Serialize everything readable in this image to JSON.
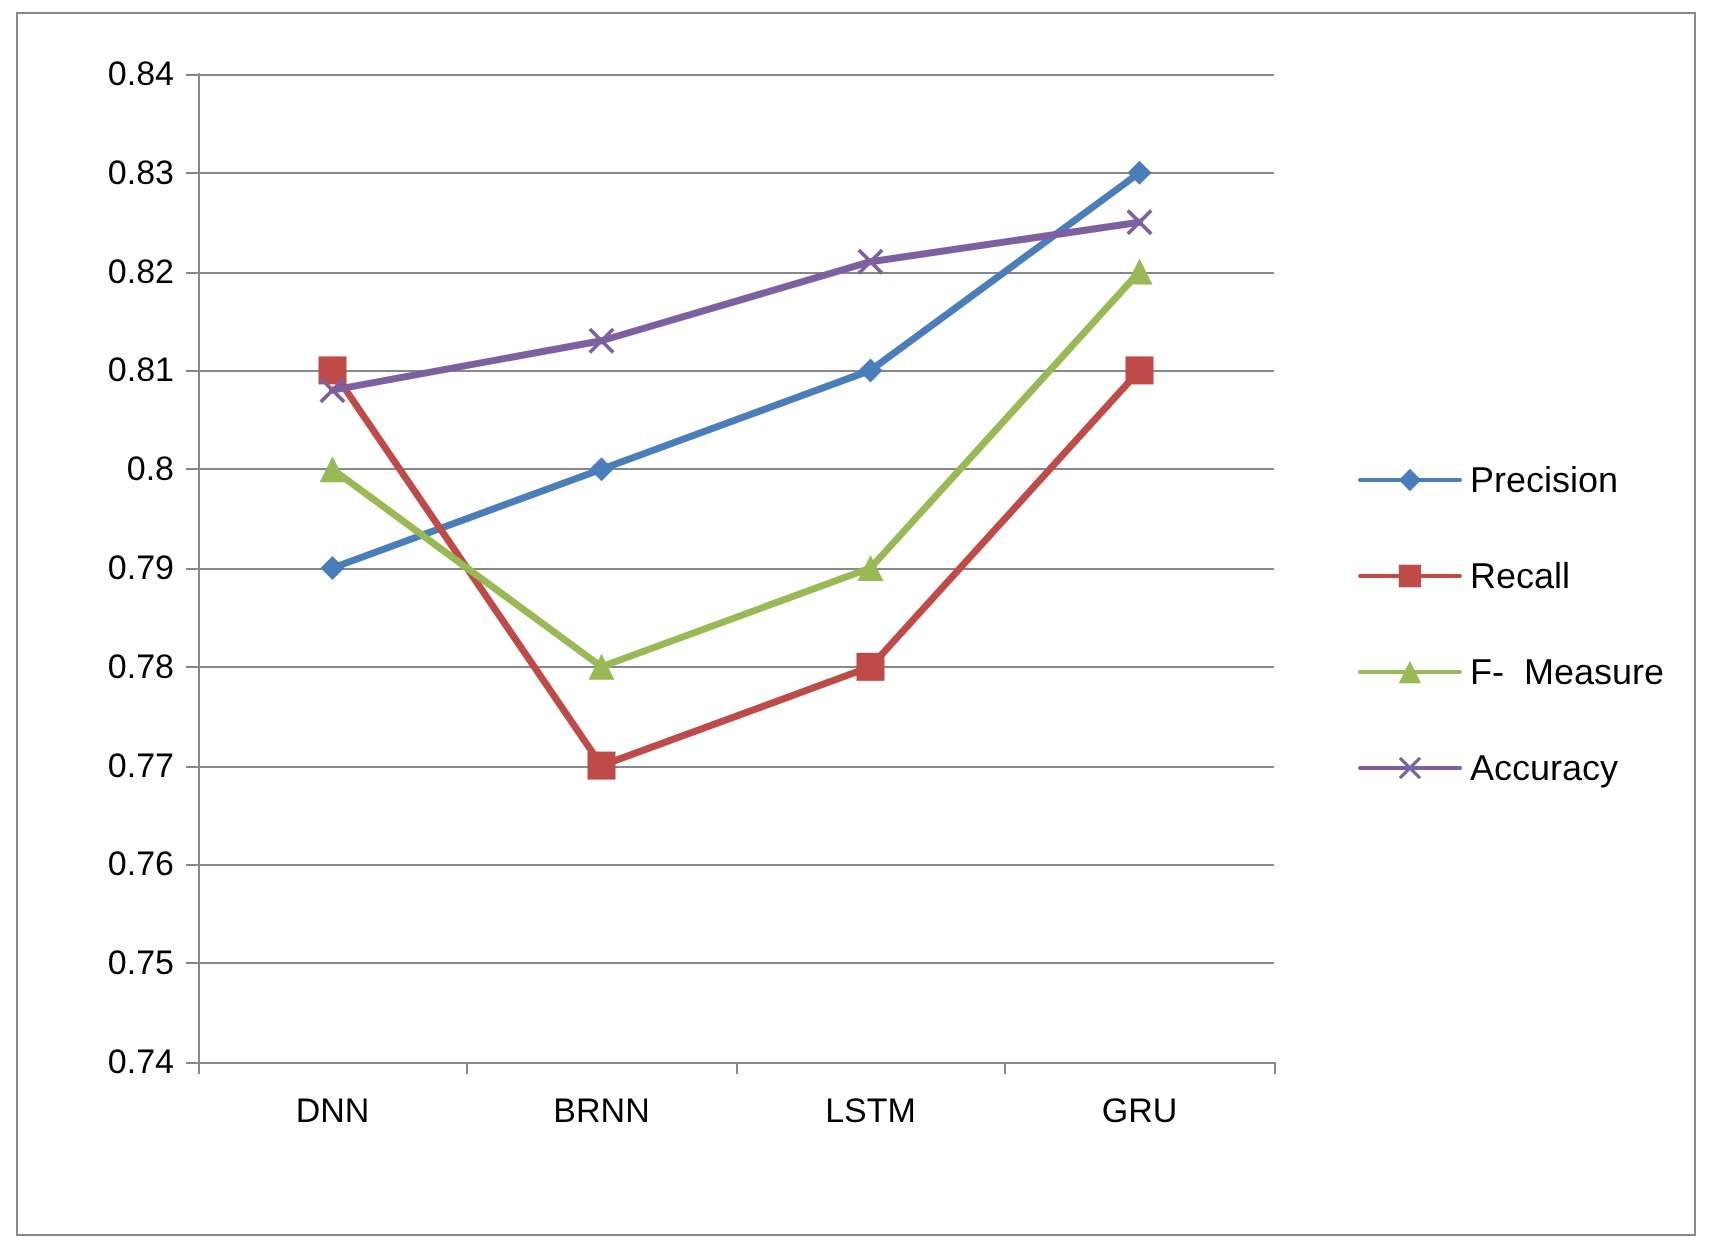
{
  "chart_data": {
    "type": "line",
    "categories": [
      "DNN",
      "BRNN",
      "LSTM",
      "GRU"
    ],
    "series": [
      {
        "name": "Precision",
        "color": "#4a7ebb",
        "marker": "diamond",
        "values": [
          0.79,
          0.8,
          0.81,
          0.83
        ]
      },
      {
        "name": "Recall",
        "color": "#be4b48",
        "marker": "square",
        "values": [
          0.81,
          0.77,
          0.78,
          0.81
        ]
      },
      {
        "name": "F-  Measure",
        "color": "#98b954",
        "marker": "triangle",
        "values": [
          0.8,
          0.78,
          0.79,
          0.82
        ]
      },
      {
        "name": "Accuracy",
        "color": "#7d60a0",
        "marker": "cross",
        "values": [
          0.808,
          0.813,
          0.821,
          0.825
        ]
      }
    ],
    "ylim": [
      0.74,
      0.84
    ],
    "yticks": [
      0.74,
      0.75,
      0.76,
      0.77,
      0.78,
      0.79,
      0.8,
      0.81,
      0.82,
      0.83,
      0.84
    ],
    "grid": "y",
    "legend": "right",
    "line_style": "solid"
  }
}
